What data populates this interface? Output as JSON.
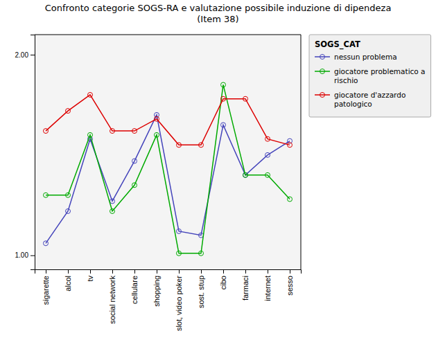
{
  "chart_data": {
    "type": "line",
    "title": "Confronto categorie SOGS-RA e valutazione possibile induzione di dipendeza\n(Item 38)",
    "categories": [
      "sigarette",
      "alcol",
      "tv",
      "social network",
      "cellulare",
      "shopping",
      "slot, video poker",
      "sost. stup",
      "cibo",
      "farmaci",
      "internet",
      "sesso"
    ],
    "series": [
      {
        "name": "nessun problema",
        "color": "#4444bb",
        "values": [
          1.06,
          1.22,
          1.58,
          1.27,
          1.47,
          1.7,
          1.12,
          1.1,
          1.65,
          1.4,
          1.5,
          1.57
        ]
      },
      {
        "name": "giocatore problematico a\nrischio",
        "color": "#00aa00",
        "values": [
          1.3,
          1.3,
          1.6,
          1.22,
          1.35,
          1.6,
          1.01,
          1.01,
          1.85,
          1.4,
          1.4,
          1.28
        ]
      },
      {
        "name": "giocatore d'azzardo\npatologico",
        "color": "#dd0000",
        "values": [
          1.62,
          1.72,
          1.8,
          1.62,
          1.62,
          1.68,
          1.55,
          1.55,
          1.78,
          1.78,
          1.58,
          1.55
        ]
      }
    ],
    "legend_title": "SOGS_CAT",
    "legend": "right",
    "marker": "circle",
    "ylim": [
      0.93,
      2.1
    ],
    "yticks": [
      {
        "value": 1.0,
        "label": "1.00"
      },
      {
        "value": 2.0,
        "label": "2.00"
      }
    ],
    "grid": false
  }
}
